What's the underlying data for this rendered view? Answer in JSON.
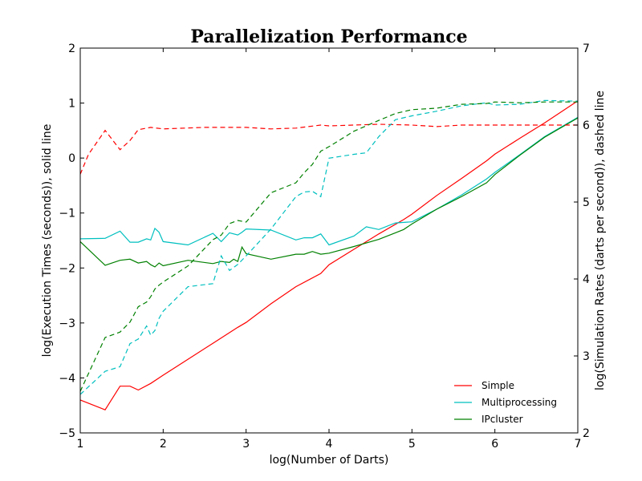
{
  "chart_data": {
    "type": "line",
    "title": "Parallelization Performance",
    "xlabel": "log(Number of Darts)",
    "ylabel_left": "log(Execution Times (seconds)), solid line",
    "ylabel_right": "log(Simulation Rates (darts per second)), dashed line",
    "xlim": [
      1,
      7
    ],
    "ylim_left": [
      -5,
      2
    ],
    "ylim_right": [
      2,
      7
    ],
    "x_ticks": [
      "1",
      "2",
      "3",
      "4",
      "5",
      "6",
      "7"
    ],
    "y_ticks_left": [
      "−5",
      "−4",
      "−3",
      "−2",
      "−1",
      "0",
      "1",
      "2"
    ],
    "y_ticks_right": [
      "2",
      "3",
      "4",
      "5",
      "6",
      "7"
    ],
    "grid": false,
    "legend_position": "lower-right",
    "series": [
      {
        "name": "Simple",
        "color": "#ff0000",
        "axis": "left",
        "style": "solid",
        "x": [
          1.0,
          1.3,
          1.48,
          1.6,
          1.7,
          1.85,
          2.0,
          2.3,
          2.6,
          2.9,
          3.0,
          3.3,
          3.6,
          3.9,
          4.0,
          4.3,
          4.6,
          4.9,
          5.0,
          5.3,
          5.6,
          5.9,
          6.0,
          6.3,
          6.6,
          7.0
        ],
        "y": [
          -4.4,
          -4.58,
          -4.15,
          -4.15,
          -4.22,
          -4.1,
          -3.95,
          -3.66,
          -3.37,
          -3.08,
          -2.99,
          -2.65,
          -2.34,
          -2.1,
          -1.94,
          -1.66,
          -1.38,
          -1.12,
          -1.02,
          -0.68,
          -0.37,
          -0.05,
          0.07,
          0.36,
          0.64,
          1.04
        ]
      },
      {
        "name": "Multiprocessing",
        "color": "#00bfbf",
        "axis": "left",
        "style": "solid",
        "x": [
          1.0,
          1.3,
          1.48,
          1.6,
          1.7,
          1.8,
          1.85,
          1.9,
          1.95,
          2.0,
          2.3,
          2.6,
          2.7,
          2.8,
          2.9,
          2.95,
          3.0,
          3.3,
          3.6,
          3.7,
          3.8,
          3.9,
          4.0,
          4.3,
          4.45,
          4.6,
          4.8,
          5.0,
          5.3,
          5.6,
          5.9,
          6.0,
          6.3,
          6.6,
          7.0
        ],
        "y": [
          -1.47,
          -1.46,
          -1.33,
          -1.53,
          -1.53,
          -1.47,
          -1.49,
          -1.28,
          -1.35,
          -1.52,
          -1.58,
          -1.37,
          -1.52,
          -1.36,
          -1.4,
          -1.35,
          -1.29,
          -1.31,
          -1.49,
          -1.45,
          -1.45,
          -1.38,
          -1.58,
          -1.42,
          -1.25,
          -1.3,
          -1.18,
          -1.16,
          -0.93,
          -0.67,
          -0.38,
          -0.26,
          0.06,
          0.39,
          0.74
        ]
      },
      {
        "name": "IPcluster",
        "color": "#008000",
        "axis": "left",
        "style": "solid",
        "x": [
          1.0,
          1.3,
          1.48,
          1.6,
          1.7,
          1.8,
          1.85,
          1.9,
          1.95,
          2.0,
          2.3,
          2.6,
          2.7,
          2.8,
          2.85,
          2.9,
          2.95,
          3.0,
          3.3,
          3.6,
          3.7,
          3.8,
          3.9,
          4.0,
          4.3,
          4.6,
          4.8,
          4.9,
          5.0,
          5.3,
          5.6,
          5.9,
          6.0,
          6.3,
          6.6,
          7.0
        ],
        "y": [
          -1.52,
          -1.95,
          -1.86,
          -1.84,
          -1.91,
          -1.88,
          -1.94,
          -1.98,
          -1.91,
          -1.96,
          -1.86,
          -1.92,
          -1.88,
          -1.9,
          -1.84,
          -1.88,
          -1.62,
          -1.74,
          -1.84,
          -1.75,
          -1.75,
          -1.7,
          -1.75,
          -1.73,
          -1.61,
          -1.48,
          -1.36,
          -1.3,
          -1.2,
          -0.93,
          -0.7,
          -0.45,
          -0.3,
          0.05,
          0.38,
          0.73
        ]
      },
      {
        "name": "",
        "color": "#ff0000",
        "axis": "right",
        "style": "dashed",
        "x": [
          1.0,
          1.1,
          1.3,
          1.48,
          1.6,
          1.7,
          1.85,
          2.0,
          2.5,
          3.0,
          3.3,
          3.6,
          3.9,
          4.0,
          4.6,
          5.0,
          5.3,
          5.6,
          6.0,
          6.5,
          7.0
        ],
        "y": [
          5.36,
          5.62,
          5.93,
          5.68,
          5.8,
          5.94,
          5.97,
          5.95,
          5.97,
          5.97,
          5.95,
          5.96,
          6.0,
          5.99,
          6.01,
          6.0,
          5.98,
          6.0,
          6.0,
          6.0,
          6.0
        ]
      },
      {
        "name": "",
        "color": "#00bfbf",
        "axis": "right",
        "style": "dashed",
        "x": [
          1.0,
          1.3,
          1.48,
          1.6,
          1.7,
          1.8,
          1.85,
          1.9,
          1.95,
          2.0,
          2.3,
          2.6,
          2.7,
          2.8,
          2.9,
          3.0,
          3.3,
          3.6,
          3.7,
          3.8,
          3.9,
          4.0,
          4.3,
          4.45,
          4.6,
          4.8,
          5.0,
          5.3,
          5.6,
          5.9,
          6.0,
          6.3,
          6.6,
          7.0
        ],
        "y": [
          2.5,
          2.8,
          2.86,
          3.16,
          3.22,
          3.39,
          3.27,
          3.33,
          3.49,
          3.58,
          3.9,
          3.94,
          4.3,
          4.11,
          4.19,
          4.3,
          4.65,
          5.07,
          5.13,
          5.14,
          5.07,
          5.57,
          5.62,
          5.64,
          5.85,
          6.07,
          6.12,
          6.18,
          6.25,
          6.29,
          6.26,
          6.27,
          6.32,
          6.31
        ]
      },
      {
        "name": "",
        "color": "#008000",
        "axis": "right",
        "style": "dashed",
        "x": [
          1.0,
          1.3,
          1.48,
          1.6,
          1.7,
          1.8,
          1.85,
          1.9,
          1.95,
          2.0,
          2.3,
          2.6,
          2.7,
          2.8,
          2.9,
          3.0,
          3.3,
          3.6,
          3.7,
          3.8,
          3.9,
          4.0,
          4.3,
          4.6,
          4.8,
          5.0,
          5.3,
          5.6,
          5.9,
          6.0,
          6.3,
          6.6,
          7.0
        ],
        "y": [
          2.54,
          3.24,
          3.31,
          3.44,
          3.64,
          3.7,
          3.77,
          3.87,
          3.92,
          3.96,
          4.17,
          4.51,
          4.57,
          4.72,
          4.76,
          4.74,
          5.12,
          5.25,
          5.38,
          5.49,
          5.66,
          5.72,
          5.92,
          6.06,
          6.15,
          6.2,
          6.22,
          6.27,
          6.28,
          6.3,
          6.29,
          6.3,
          6.3
        ]
      }
    ]
  }
}
